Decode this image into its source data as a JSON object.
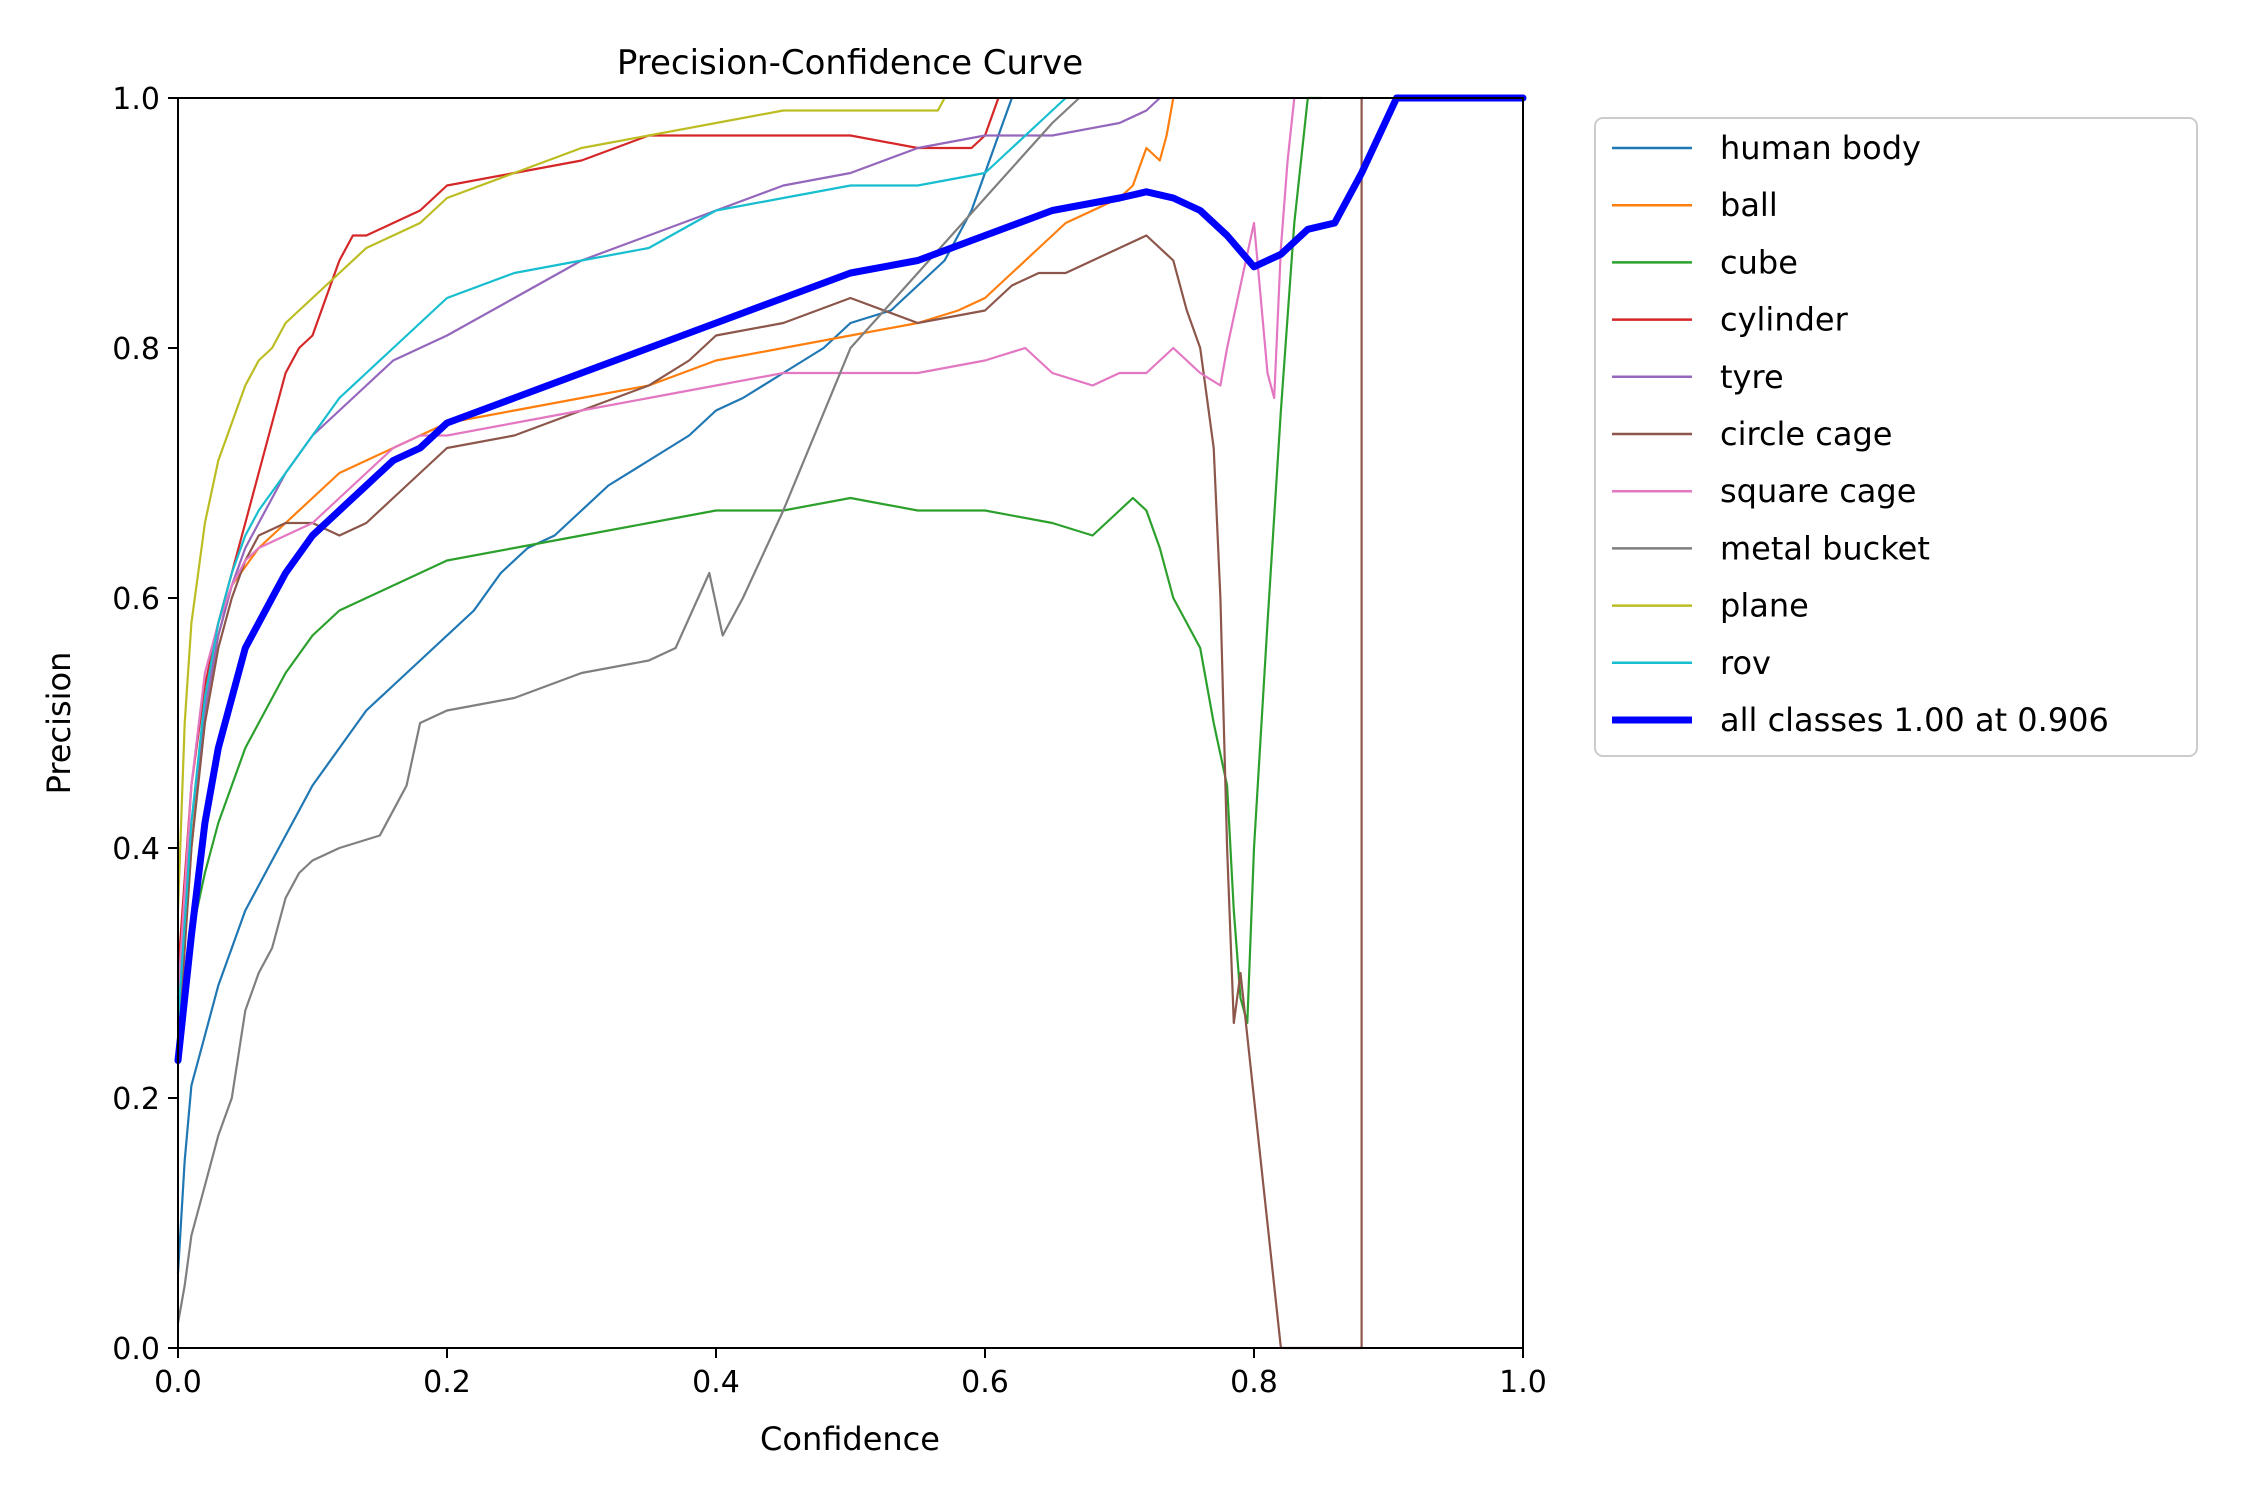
{
  "chart_data": {
    "type": "line",
    "title": "Precision-Confidence Curve",
    "xlabel": "Confidence",
    "ylabel": "Precision",
    "xlim": [
      0,
      1
    ],
    "ylim": [
      0,
      1
    ],
    "xticks": [
      "0.0",
      "0.2",
      "0.4",
      "0.6",
      "0.8",
      "1.0"
    ],
    "yticks": [
      "0.0",
      "0.2",
      "0.4",
      "0.6",
      "0.8",
      "1.0"
    ],
    "grid": false,
    "legend_position": "outside-top-right",
    "series": [
      {
        "name": "human body",
        "color": "#1f77b4",
        "x": [
          0.0,
          0.005,
          0.01,
          0.02,
          0.03,
          0.04,
          0.05,
          0.06,
          0.07,
          0.08,
          0.09,
          0.1,
          0.12,
          0.14,
          0.16,
          0.18,
          0.2,
          0.22,
          0.24,
          0.26,
          0.28,
          0.3,
          0.32,
          0.35,
          0.38,
          0.4,
          0.42,
          0.45,
          0.48,
          0.5,
          0.53,
          0.55,
          0.57,
          0.58,
          0.59,
          0.6,
          0.61,
          0.62
        ],
        "y": [
          0.06,
          0.15,
          0.21,
          0.25,
          0.29,
          0.32,
          0.35,
          0.37,
          0.39,
          0.41,
          0.43,
          0.45,
          0.48,
          0.51,
          0.53,
          0.55,
          0.57,
          0.59,
          0.62,
          0.64,
          0.65,
          0.67,
          0.69,
          0.71,
          0.73,
          0.75,
          0.76,
          0.78,
          0.8,
          0.82,
          0.83,
          0.85,
          0.87,
          0.89,
          0.91,
          0.94,
          0.97,
          1.0
        ]
      },
      {
        "name": "ball",
        "color": "#ff7f0e",
        "x": [
          0.0,
          0.01,
          0.02,
          0.03,
          0.04,
          0.06,
          0.08,
          0.1,
          0.12,
          0.14,
          0.16,
          0.18,
          0.2,
          0.25,
          0.3,
          0.35,
          0.4,
          0.45,
          0.5,
          0.55,
          0.58,
          0.6,
          0.62,
          0.64,
          0.66,
          0.68,
          0.7,
          0.71,
          0.72,
          0.73,
          0.735,
          0.74
        ],
        "y": [
          0.24,
          0.4,
          0.51,
          0.57,
          0.61,
          0.64,
          0.66,
          0.68,
          0.7,
          0.71,
          0.72,
          0.73,
          0.74,
          0.75,
          0.76,
          0.77,
          0.79,
          0.8,
          0.81,
          0.82,
          0.83,
          0.84,
          0.86,
          0.88,
          0.9,
          0.91,
          0.92,
          0.93,
          0.96,
          0.95,
          0.97,
          1.0
        ]
      },
      {
        "name": "cube",
        "color": "#2ca02c",
        "x": [
          0.0,
          0.01,
          0.02,
          0.03,
          0.04,
          0.05,
          0.06,
          0.08,
          0.1,
          0.12,
          0.14,
          0.16,
          0.18,
          0.2,
          0.25,
          0.3,
          0.35,
          0.4,
          0.45,
          0.5,
          0.55,
          0.6,
          0.65,
          0.68,
          0.7,
          0.71,
          0.72,
          0.73,
          0.74,
          0.75,
          0.76,
          0.77,
          0.78,
          0.785,
          0.79,
          0.795,
          0.8,
          0.81,
          0.82,
          0.83,
          0.84,
          0.85
        ],
        "y": [
          0.26,
          0.33,
          0.38,
          0.42,
          0.45,
          0.48,
          0.5,
          0.54,
          0.57,
          0.59,
          0.6,
          0.61,
          0.62,
          0.63,
          0.64,
          0.65,
          0.66,
          0.67,
          0.67,
          0.68,
          0.67,
          0.67,
          0.66,
          0.65,
          0.67,
          0.68,
          0.67,
          0.64,
          0.6,
          0.58,
          0.56,
          0.5,
          0.45,
          0.35,
          0.28,
          0.26,
          0.4,
          0.58,
          0.75,
          0.9,
          1.0,
          1.0
        ]
      },
      {
        "name": "cylinder",
        "color": "#d62728",
        "x": [
          0.0,
          0.01,
          0.02,
          0.03,
          0.04,
          0.05,
          0.06,
          0.07,
          0.08,
          0.09,
          0.1,
          0.11,
          0.12,
          0.13,
          0.14,
          0.16,
          0.18,
          0.2,
          0.25,
          0.3,
          0.35,
          0.4,
          0.45,
          0.5,
          0.55,
          0.59,
          0.6,
          0.61
        ],
        "y": [
          0.3,
          0.45,
          0.53,
          0.58,
          0.62,
          0.66,
          0.7,
          0.74,
          0.78,
          0.8,
          0.81,
          0.84,
          0.87,
          0.89,
          0.89,
          0.9,
          0.91,
          0.93,
          0.94,
          0.95,
          0.97,
          0.97,
          0.97,
          0.97,
          0.96,
          0.96,
          0.97,
          1.0
        ]
      },
      {
        "name": "tyre",
        "color": "#9467bd",
        "x": [
          0.0,
          0.01,
          0.02,
          0.03,
          0.04,
          0.05,
          0.06,
          0.08,
          0.1,
          0.12,
          0.14,
          0.16,
          0.18,
          0.2,
          0.25,
          0.3,
          0.35,
          0.4,
          0.45,
          0.5,
          0.55,
          0.6,
          0.62,
          0.65,
          0.7,
          0.72,
          0.73
        ],
        "y": [
          0.28,
          0.42,
          0.51,
          0.57,
          0.61,
          0.64,
          0.66,
          0.7,
          0.73,
          0.75,
          0.77,
          0.79,
          0.8,
          0.81,
          0.84,
          0.87,
          0.89,
          0.91,
          0.93,
          0.94,
          0.96,
          0.97,
          0.97,
          0.97,
          0.98,
          0.99,
          1.0
        ]
      },
      {
        "name": "circle cage",
        "color": "#8c564b",
        "x": [
          0.0,
          0.01,
          0.02,
          0.03,
          0.04,
          0.05,
          0.06,
          0.08,
          0.1,
          0.12,
          0.14,
          0.16,
          0.18,
          0.2,
          0.25,
          0.3,
          0.35,
          0.38,
          0.4,
          0.45,
          0.5,
          0.55,
          0.6,
          0.62,
          0.64,
          0.66,
          0.68,
          0.7,
          0.72,
          0.74,
          0.75,
          0.76,
          0.77,
          0.775,
          0.78,
          0.785,
          0.79,
          0.82,
          0.83,
          0.88,
          0.88,
          0.881
        ],
        "y": [
          0.24,
          0.4,
          0.5,
          0.56,
          0.6,
          0.63,
          0.65,
          0.66,
          0.66,
          0.65,
          0.66,
          0.68,
          0.7,
          0.72,
          0.73,
          0.75,
          0.77,
          0.79,
          0.81,
          0.82,
          0.84,
          0.82,
          0.83,
          0.85,
          0.86,
          0.86,
          0.87,
          0.88,
          0.89,
          0.87,
          0.83,
          0.8,
          0.72,
          0.6,
          0.4,
          0.26,
          0.3,
          0.0,
          0.0,
          0.0,
          1.0,
          1.0
        ]
      },
      {
        "name": "square cage",
        "color": "#e377c2",
        "x": [
          0.0,
          0.01,
          0.02,
          0.03,
          0.04,
          0.05,
          0.06,
          0.08,
          0.1,
          0.12,
          0.14,
          0.16,
          0.18,
          0.2,
          0.25,
          0.3,
          0.35,
          0.4,
          0.45,
          0.5,
          0.55,
          0.6,
          0.63,
          0.65,
          0.68,
          0.7,
          0.72,
          0.74,
          0.76,
          0.775,
          0.78,
          0.79,
          0.8,
          0.81,
          0.815,
          0.82,
          0.825,
          0.83
        ],
        "y": [
          0.28,
          0.45,
          0.54,
          0.58,
          0.61,
          0.63,
          0.64,
          0.65,
          0.66,
          0.68,
          0.7,
          0.72,
          0.73,
          0.73,
          0.74,
          0.75,
          0.76,
          0.77,
          0.78,
          0.78,
          0.78,
          0.79,
          0.8,
          0.78,
          0.77,
          0.78,
          0.78,
          0.8,
          0.78,
          0.77,
          0.8,
          0.85,
          0.9,
          0.78,
          0.76,
          0.88,
          0.95,
          1.0
        ]
      },
      {
        "name": "metal bucket",
        "color": "#7f7f7f",
        "x": [
          0.0,
          0.005,
          0.01,
          0.02,
          0.03,
          0.04,
          0.05,
          0.06,
          0.07,
          0.08,
          0.09,
          0.1,
          0.12,
          0.15,
          0.17,
          0.18,
          0.2,
          0.25,
          0.3,
          0.35,
          0.37,
          0.395,
          0.405,
          0.42,
          0.45,
          0.5,
          0.55,
          0.6,
          0.65,
          0.67
        ],
        "y": [
          0.02,
          0.05,
          0.09,
          0.13,
          0.17,
          0.2,
          0.27,
          0.3,
          0.32,
          0.36,
          0.38,
          0.39,
          0.4,
          0.41,
          0.45,
          0.5,
          0.51,
          0.52,
          0.54,
          0.55,
          0.56,
          0.62,
          0.57,
          0.6,
          0.67,
          0.8,
          0.86,
          0.92,
          0.98,
          1.0
        ]
      },
      {
        "name": "plane",
        "color": "#bcbd22",
        "x": [
          0.0,
          0.005,
          0.01,
          0.015,
          0.02,
          0.03,
          0.04,
          0.05,
          0.06,
          0.07,
          0.08,
          0.1,
          0.12,
          0.14,
          0.16,
          0.18,
          0.2,
          0.25,
          0.3,
          0.35,
          0.4,
          0.45,
          0.5,
          0.55,
          0.565,
          0.57
        ],
        "y": [
          0.35,
          0.5,
          0.58,
          0.62,
          0.66,
          0.71,
          0.74,
          0.77,
          0.79,
          0.8,
          0.82,
          0.84,
          0.86,
          0.88,
          0.89,
          0.9,
          0.92,
          0.94,
          0.96,
          0.97,
          0.98,
          0.99,
          0.99,
          0.99,
          0.99,
          1.0
        ]
      },
      {
        "name": "rov",
        "color": "#17becf",
        "x": [
          0.0,
          0.01,
          0.02,
          0.03,
          0.04,
          0.05,
          0.06,
          0.08,
          0.1,
          0.12,
          0.14,
          0.16,
          0.18,
          0.2,
          0.25,
          0.3,
          0.35,
          0.4,
          0.45,
          0.5,
          0.55,
          0.6,
          0.62,
          0.64,
          0.66
        ],
        "y": [
          0.26,
          0.42,
          0.52,
          0.58,
          0.62,
          0.65,
          0.67,
          0.7,
          0.73,
          0.76,
          0.78,
          0.8,
          0.82,
          0.84,
          0.86,
          0.87,
          0.88,
          0.91,
          0.92,
          0.93,
          0.93,
          0.94,
          0.96,
          0.98,
          1.0
        ]
      },
      {
        "name": "all classes 1.00 at 0.906",
        "color": "#0000ff",
        "bold": true,
        "x": [
          0.0,
          0.01,
          0.02,
          0.03,
          0.04,
          0.05,
          0.06,
          0.07,
          0.08,
          0.1,
          0.12,
          0.14,
          0.16,
          0.18,
          0.2,
          0.25,
          0.3,
          0.35,
          0.4,
          0.45,
          0.5,
          0.55,
          0.6,
          0.65,
          0.7,
          0.72,
          0.74,
          0.76,
          0.78,
          0.8,
          0.82,
          0.84,
          0.86,
          0.88,
          0.906,
          0.95,
          1.0
        ],
        "y": [
          0.23,
          0.33,
          0.42,
          0.48,
          0.52,
          0.56,
          0.58,
          0.6,
          0.62,
          0.65,
          0.67,
          0.69,
          0.71,
          0.72,
          0.74,
          0.76,
          0.78,
          0.8,
          0.82,
          0.84,
          0.86,
          0.87,
          0.89,
          0.91,
          0.92,
          0.925,
          0.92,
          0.91,
          0.89,
          0.865,
          0.875,
          0.895,
          0.9,
          0.94,
          1.0,
          1.0,
          1.0
        ]
      }
    ]
  }
}
